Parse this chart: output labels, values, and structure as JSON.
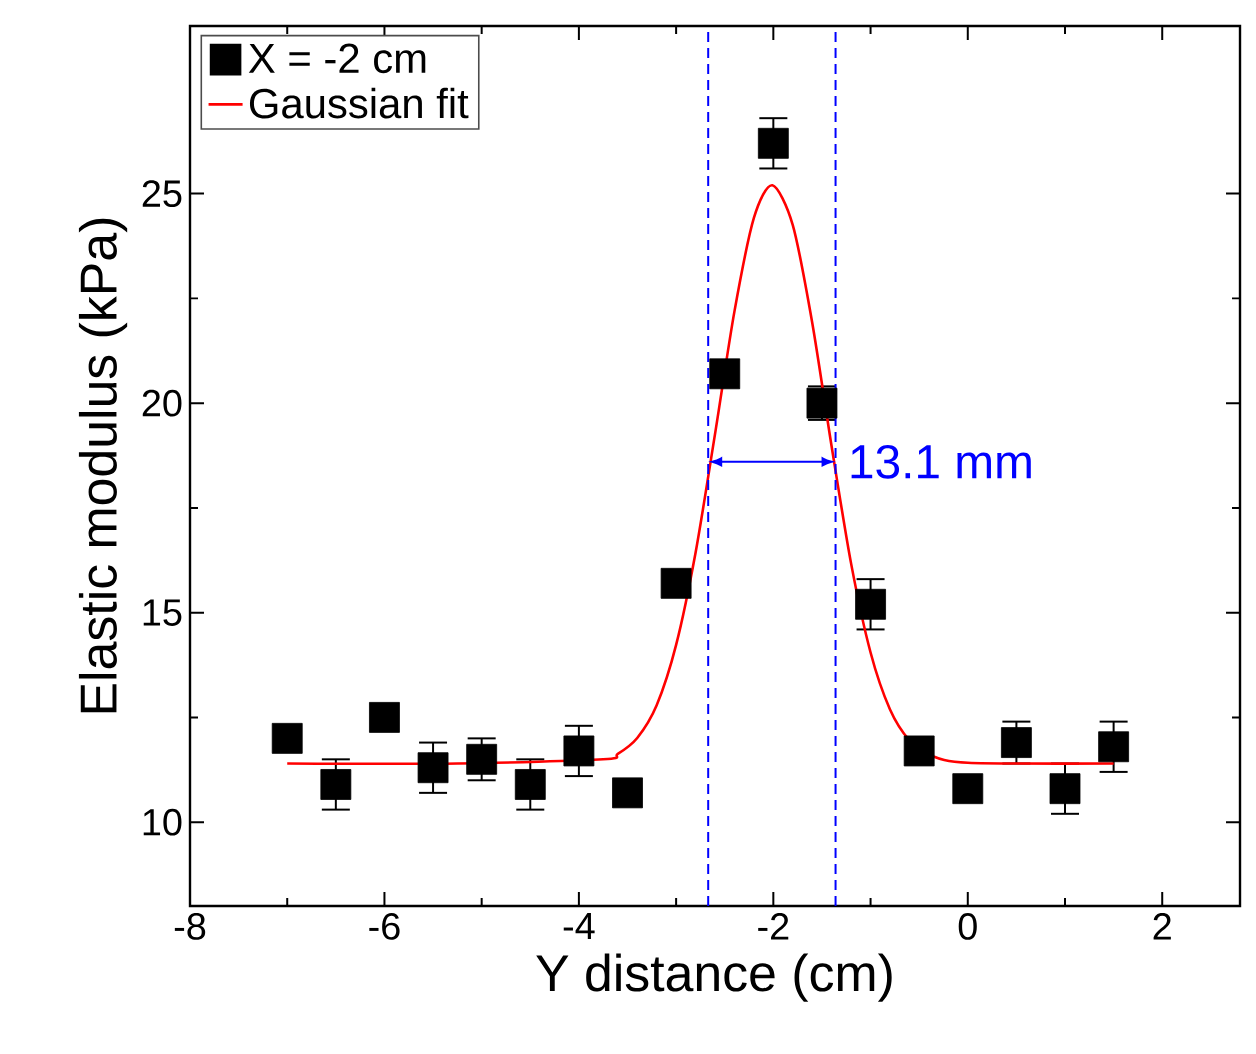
{
  "chart_data": {
    "type": "scatter",
    "xlabel": "Y distance (cm)",
    "ylabel": "Elastic modulus (kPa)",
    "xlim": [
      -8,
      2.8
    ],
    "ylim": [
      8,
      29
    ],
    "xticks": [
      -8,
      -6,
      -4,
      -2,
      0,
      2
    ],
    "yticks": [
      10,
      15,
      20,
      25
    ],
    "legend": "top left",
    "grid": false,
    "series": [
      {
        "name": "X = -2 cm",
        "marker": "square",
        "color": "#000000",
        "x": [
          -7,
          -6.5,
          -6,
          -5.5,
          -5,
          -4.5,
          -4,
          -3.5,
          -3,
          -2.5,
          -2,
          -1.5,
          -1,
          -0.5,
          0,
          0.5,
          1,
          1.5
        ],
        "values": [
          12.0,
          10.9,
          12.5,
          11.3,
          11.5,
          10.9,
          11.7,
          10.7,
          15.7,
          20.7,
          26.2,
          20.0,
          15.2,
          11.7,
          10.8,
          11.9,
          10.8,
          11.8
        ],
        "errors": [
          0.3,
          0.6,
          0.3,
          0.6,
          0.5,
          0.6,
          0.6,
          0.3,
          0.3,
          0.3,
          0.6,
          0.4,
          0.6,
          0.3,
          0.3,
          0.5,
          0.6,
          0.6
        ]
      },
      {
        "name": "Gaussian fit",
        "type": "line",
        "marker": "none",
        "color": "#ff0000",
        "x": [
          -7,
          -5.25,
          -3.75,
          -3.6,
          -3.4,
          -3.2,
          -3.0,
          -2.8,
          -2.6,
          -2.4,
          -2.2,
          -2.01,
          -1.8,
          -1.6,
          -1.4,
          -1.2,
          -1.0,
          -0.8,
          -0.6,
          -0.4,
          0,
          1.5
        ],
        "values": [
          11.4,
          11.4,
          11.5,
          11.63,
          12.01,
          12.79,
          14.23,
          16.43,
          19.26,
          22.19,
          24.42,
          25.2,
          24.25,
          21.92,
          18.96,
          16.17,
          14.05,
          12.69,
          11.95,
          11.61,
          11.42,
          11.4
        ]
      }
    ],
    "ref_lines": [
      {
        "axis": "x",
        "value": -2.67,
        "color": "#0000ff",
        "line_style": "dashed"
      },
      {
        "axis": "x",
        "value": -1.36,
        "color": "#0000ff",
        "line_style": "dashed"
      }
    ],
    "annotations": [
      {
        "text": "13.1 mm",
        "x": -1.36,
        "y": 18.6
      }
    ]
  }
}
